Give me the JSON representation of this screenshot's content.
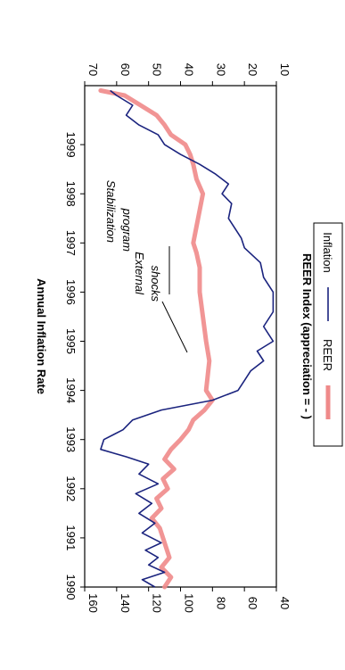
{
  "chart_data": {
    "type": "line",
    "orientation": "rotated-90-clockwise",
    "xlabel": "",
    "x_ticks": [
      "1990",
      "1991",
      "1992",
      "1993",
      "1994",
      "1995",
      "1996",
      "1997",
      "1998",
      "1999"
    ],
    "x_range": [
      1990,
      2000.2
    ],
    "left_axis": {
      "label": "REER Index (appreciation = - )",
      "range": [
        40,
        160
      ],
      "ticks": [
        40,
        60,
        80,
        100,
        120,
        140,
        160
      ]
    },
    "right_axis": {
      "label": "Annual Inflation Rate",
      "range": [
        10,
        70
      ],
      "ticks": [
        10,
        20,
        30,
        40,
        50,
        60,
        70
      ]
    },
    "grid": false,
    "legend_position": "bottom",
    "annotations": [
      {
        "lines": [
          "Stabilization",
          "program"
        ],
        "style": "italic"
      },
      {
        "lines": [
          "External",
          "shocks"
        ],
        "style": "italic"
      }
    ],
    "series": [
      {
        "name": "REER",
        "axis": "left",
        "color": "#ef8a8a",
        "style": "thick-band",
        "x": [
          1990.0,
          1990.2,
          1990.4,
          1990.6,
          1990.8,
          1991.0,
          1991.2,
          1991.4,
          1991.6,
          1991.8,
          1992.0,
          1992.2,
          1992.4,
          1992.6,
          1992.8,
          1993.0,
          1993.2,
          1993.4,
          1993.6,
          1993.8,
          1994.0,
          1994.3,
          1994.6,
          1995.0,
          1995.5,
          1996.0,
          1996.5,
          1996.8,
          1997.0,
          1997.5,
          1998.0,
          1998.3,
          1998.6,
          1998.8,
          1999.0,
          1999.2,
          1999.4,
          1999.6,
          1999.8,
          2000.0,
          2000.1
        ],
        "values": [
          110,
          106,
          112,
          107,
          109,
          111,
          113,
          118,
          112,
          115,
          108,
          111,
          104,
          110,
          106,
          100,
          95,
          92,
          85,
          80,
          84,
          83,
          82,
          84,
          86,
          88,
          88,
          90,
          92,
          89,
          86,
          90,
          92,
          94,
          97,
          106,
          110,
          115,
          125,
          135,
          150
        ]
      },
      {
        "name": "Inflation",
        "axis": "right",
        "color": "#1a237e",
        "style": "thin-line",
        "x": [
          1990.0,
          1990.15,
          1990.3,
          1990.45,
          1990.6,
          1990.75,
          1990.9,
          1991.1,
          1991.3,
          1991.5,
          1991.7,
          1991.9,
          1992.1,
          1992.3,
          1992.5,
          1992.65,
          1992.8,
          1993.0,
          1993.2,
          1993.4,
          1993.6,
          1993.8,
          1994.0,
          1994.2,
          1994.4,
          1994.6,
          1994.8,
          1995.0,
          1995.3,
          1995.6,
          1996.0,
          1996.3,
          1996.6,
          1996.9,
          1997.1,
          1997.5,
          1997.8,
          1998.0,
          1998.2,
          1998.4,
          1998.6,
          1998.8,
          1999.0,
          1999.2,
          1999.4,
          1999.6,
          1999.8,
          2000.0,
          2000.1
        ],
        "values": [
          48,
          52,
          45,
          50,
          47,
          51,
          46,
          52,
          48,
          53,
          49,
          54,
          47,
          53,
          50,
          57,
          65,
          64,
          58,
          55,
          46,
          30,
          22,
          20,
          18,
          14,
          16,
          11,
          14,
          11,
          11,
          14,
          15,
          20,
          21,
          25,
          24,
          27,
          25,
          29,
          34,
          40,
          45,
          47,
          53,
          57,
          55,
          60,
          62
        ]
      }
    ]
  }
}
